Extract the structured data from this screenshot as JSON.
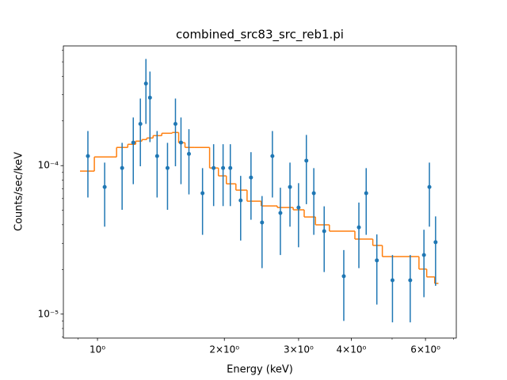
{
  "chart_data": {
    "type": "errorbar",
    "title": "combined_src83_src_reb1.pi",
    "xlabel": "Energy (keV)",
    "ylabel": "Counts/sec/keV",
    "xscale": "log",
    "yscale": "log",
    "color": "#1f77b4",
    "x": [
      0.949,
      1.04,
      1.144,
      1.216,
      1.264,
      1.303,
      1.332,
      1.385,
      1.466,
      1.531,
      1.578,
      1.648,
      1.775,
      1.886,
      1.986,
      2.066,
      2.186,
      2.313,
      2.457,
      2.6,
      2.716,
      2.862,
      2.999,
      3.13,
      3.26,
      3.45,
      3.84,
      4.17,
      4.34,
      4.6,
      5.01,
      5.52,
      5.95,
      6.13,
      6.34
    ],
    "values": [
      0.000116,
      7.18e-05,
      9.64e-05,
      0.000143,
      0.000191,
      0.000357,
      0.000287,
      0.000116,
      9.64e-05,
      0.000191,
      0.000143,
      0.00012,
      6.52e-05,
      9.64e-05,
      9.64e-05,
      9.64e-05,
      5.83e-05,
      8.32e-05,
      4.14e-05,
      0.000116,
      4.8e-05,
      7.18e-05,
      5.22e-05,
      0.000108,
      6.52e-05,
      3.62e-05,
      1.8e-05,
      3.84e-05,
      6.52e-05,
      2.3e-05,
      1.69e-05,
      1.69e-05,
      2.5e-05,
      7.18e-05,
      3.05e-05
    ],
    "errors": [
      5.5e-05,
      3.3e-05,
      4.6e-05,
      6.8e-05,
      9.2e-05,
      0.000166,
      0.000143,
      5.5e-05,
      4.6e-05,
      9.2e-05,
      6.8e-05,
      5.6e-05,
      3.1e-05,
      4.3e-05,
      4.3e-05,
      4.3e-05,
      2.7e-05,
      4e-05,
      2.1e-05,
      5.5e-05,
      2.3e-05,
      3.3e-05,
      2.4e-05,
      5.3e-05,
      3.1e-05,
      1.7e-05,
      9e-06,
      1.8e-05,
      3.1e-05,
      1.14e-05,
      8.1e-06,
      8.1e-06,
      1.2e-05,
      3.3e-05,
      1.5e-05
    ],
    "model": {
      "type": "step",
      "color": "#ff7f0e",
      "edges": [
        0.909,
        0.983,
        1.11,
        1.18,
        1.232,
        1.275,
        1.309,
        1.355,
        1.421,
        1.504,
        1.558,
        1.613,
        1.699,
        1.845,
        1.936,
        2.022,
        2.13,
        2.264,
        2.446,
        2.67,
        2.913,
        3.093,
        3.29,
        3.55,
        4.08,
        4.5,
        4.74,
        5.21,
        5.79,
        6.04,
        6.31,
        6.44
      ],
      "values": [
        9.18e-05,
        0.0001144,
        0.0001326,
        0.0001392,
        0.0001462,
        0.0001498,
        0.0001535,
        0.0001592,
        0.0001652,
        0.0001672,
        0.0001426,
        0.0001326,
        0.0001326,
        9.64e-05,
        8.53e-05,
        7.54e-05,
        6.84e-05,
        5.76e-05,
        5.35e-05,
        5.22e-05,
        5.04e-05,
        4.51e-05,
        3.99e-05,
        3.62e-05,
        3.2e-05,
        2.9e-05,
        2.44e-05,
        2.44e-05,
        2.01e-05,
        1.78e-05,
        1.61e-05
      ]
    },
    "xlim": [
      0.83,
      7.1
    ],
    "ylim": [
      6.9e-06,
      0.00064
    ],
    "xticks": [
      {
        "value": 1,
        "label": "10⁰"
      },
      {
        "value": 2,
        "label": "2×10⁰"
      },
      {
        "value": 3,
        "label": "3×10⁰"
      },
      {
        "value": 4,
        "label": "4×10⁰"
      },
      {
        "value": 6,
        "label": "6×10⁰"
      }
    ],
    "xminor": [
      0.9,
      5,
      7
    ],
    "yticks": [
      {
        "value": 1e-05,
        "label": "10⁻⁵"
      },
      {
        "value": 0.0001,
        "label": "10⁻⁴"
      }
    ],
    "yminor": [
      7e-06,
      8e-06,
      9e-06,
      2e-05,
      3e-05,
      4e-05,
      5e-05,
      6e-05,
      7e-05,
      8e-05,
      9e-05,
      0.0002,
      0.0003,
      0.0004,
      0.0005,
      0.0006
    ]
  }
}
